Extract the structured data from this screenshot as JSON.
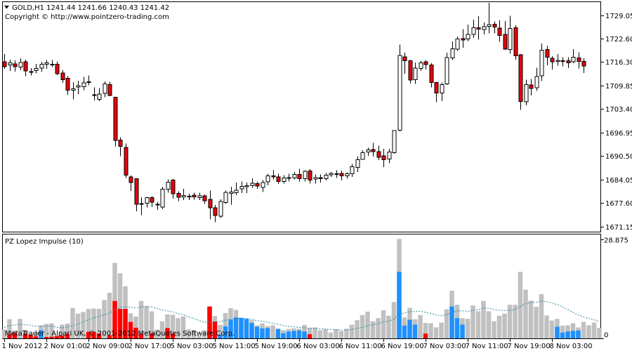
{
  "header": {
    "menu_icon": "triangle-down-icon",
    "symbol_info": "GOLD,H1  1241.44 1241.66 1240.43 1241.42",
    "copyright": "Copyright © http://www.pointzero-trading.com"
  },
  "indicator": {
    "title": "PZ Lopez Impulse (10)",
    "watermark": "MetaTrader - Alpari UK, © 2001-2012 MetaQuotes Software Corp."
  },
  "colors": {
    "bull_body": "#ffffff",
    "bear_body": "#e8000b",
    "hist_gray": "#c0c0c0",
    "hist_blue": "#1e90ff",
    "hist_red": "#ff0000",
    "signal_line": "#2a8a9a"
  },
  "chart_data": [
    {
      "type": "candlestick",
      "title": "GOLD,H1",
      "ylim": [
        1670.0,
        1732.5
      ],
      "y_ticks": [
        "1729.05",
        "1722.60",
        "1716.30",
        "1709.85",
        "1703.40",
        "1696.95",
        "1690.50",
        "1684.05",
        "1677.60",
        "1671.15"
      ],
      "x_ticks": [
        "1 Nov 2012",
        "2 Nov 01:00",
        "2 Nov 09:00",
        "2 Nov 17:00",
        "5 Nov 03:00",
        "5 Nov 11:00",
        "5 Nov 19:00",
        "6 Nov 03:00",
        "6 Nov 11:00",
        "6 Nov 19:00",
        "7 Nov 03:00",
        "7 Nov 11:00",
        "7 Nov 19:00",
        "8 Nov 03:00"
      ],
      "candles": [
        [
          1716.3,
          1715.0,
          1718.5,
          1714.4
        ],
        [
          1715.5,
          1716.1,
          1716.9,
          1713.8
        ],
        [
          1715.8,
          1715.0,
          1716.7,
          1713.7
        ],
        [
          1714.9,
          1716.2,
          1717.3,
          1714.0
        ],
        [
          1716.3,
          1713.8,
          1716.9,
          1712.4
        ],
        [
          1713.5,
          1713.7,
          1714.6,
          1712.6
        ],
        [
          1713.9,
          1714.5,
          1715.8,
          1713.2
        ],
        [
          1714.6,
          1715.7,
          1716.3,
          1713.6
        ],
        [
          1715.7,
          1716.1,
          1716.8,
          1714.4
        ],
        [
          1715.6,
          1715.7,
          1716.8,
          1714.9
        ],
        [
          1715.7,
          1713.1,
          1716.4,
          1712.7
        ],
        [
          1713.3,
          1711.4,
          1714.0,
          1710.6
        ],
        [
          1711.8,
          1708.6,
          1712.4,
          1707.3
        ],
        [
          1708.6,
          1708.9,
          1710.8,
          1706.1
        ],
        [
          1709.4,
          1709.8,
          1711.2,
          1707.5
        ],
        [
          1709.5,
          1710.6,
          1712.2,
          1708.6
        ],
        [
          1710.8,
          1710.9,
          1712.6,
          1709.9
        ],
        [
          1707.3,
          1707.3,
          1709.3,
          1705.8
        ],
        [
          1706.1,
          1707.5,
          1709.1,
          1705.6
        ],
        [
          1707.7,
          1710.3,
          1711.0,
          1706.6
        ],
        [
          1710.1,
          1707.1,
          1710.9,
          1706.9
        ],
        [
          1706.6,
          1694.8,
          1706.6,
          1693.1
        ],
        [
          1694.9,
          1693.2,
          1695.7,
          1690.5
        ],
        [
          1692.9,
          1685.3,
          1693.9,
          1684.5
        ],
        [
          1684.8,
          1683.3,
          1685.2,
          1681.0
        ],
        [
          1684.3,
          1677.3,
          1684.3,
          1675.4
        ],
        [
          1677.5,
          1677.4,
          1679.2,
          1674.3
        ],
        [
          1677.6,
          1679.1,
          1679.3,
          1676.4
        ],
        [
          1679.1,
          1677.9,
          1679.5,
          1676.5
        ],
        [
          1677.3,
          1677.1,
          1678.0,
          1675.8
        ],
        [
          1676.5,
          1681.4,
          1682.1,
          1676.0
        ],
        [
          1681.4,
          1683.4,
          1684.1,
          1680.5
        ],
        [
          1683.9,
          1680.2,
          1684.2,
          1678.8
        ],
        [
          1680.3,
          1679.2,
          1680.9,
          1678.2
        ],
        [
          1679.3,
          1679.7,
          1681.5,
          1678.5
        ],
        [
          1679.3,
          1679.5,
          1680.2,
          1678.5
        ],
        [
          1679.8,
          1679.3,
          1680.5,
          1678.6
        ],
        [
          1679.1,
          1679.6,
          1680.5,
          1678.5
        ],
        [
          1679.6,
          1678.3,
          1680.0,
          1677.4
        ],
        [
          1678.7,
          1676.3,
          1681.1,
          1673.2
        ],
        [
          1676.3,
          1674.2,
          1677.1,
          1672.4
        ],
        [
          1674.0,
          1678.1,
          1678.7,
          1673.6
        ],
        [
          1677.8,
          1680.6,
          1681.1,
          1677.4
        ],
        [
          1680.3,
          1680.7,
          1682.1,
          1677.2
        ],
        [
          1680.5,
          1681.2,
          1683.3,
          1679.8
        ],
        [
          1681.5,
          1682.2,
          1683.6,
          1680.4
        ],
        [
          1682.1,
          1682.4,
          1683.3,
          1680.4
        ],
        [
          1682.4,
          1683.1,
          1684.4,
          1681.8
        ],
        [
          1683.0,
          1682.3,
          1683.5,
          1681.5
        ],
        [
          1681.9,
          1683.3,
          1683.9,
          1680.7
        ],
        [
          1683.5,
          1685.1,
          1685.7,
          1682.5
        ],
        [
          1685.1,
          1684.8,
          1686.6,
          1684.0
        ],
        [
          1684.8,
          1683.6,
          1685.7,
          1682.9
        ],
        [
          1683.6,
          1684.5,
          1685.3,
          1683.0
        ],
        [
          1684.5,
          1684.6,
          1685.7,
          1683.6
        ],
        [
          1684.5,
          1685.5,
          1686.2,
          1684.1
        ],
        [
          1685.5,
          1684.3,
          1687.0,
          1683.6
        ],
        [
          1684.3,
          1686.3,
          1686.6,
          1683.6
        ],
        [
          1686.4,
          1683.9,
          1686.9,
          1683.0
        ],
        [
          1684.2,
          1684.6,
          1685.5,
          1683.0
        ],
        [
          1684.6,
          1684.3,
          1685.5,
          1683.3
        ],
        [
          1684.3,
          1685.3,
          1685.9,
          1683.8
        ],
        [
          1685.4,
          1685.8,
          1686.2,
          1684.8
        ],
        [
          1685.7,
          1685.7,
          1686.6,
          1684.5
        ],
        [
          1685.8,
          1685.1,
          1686.5,
          1683.8
        ],
        [
          1685.1,
          1685.7,
          1686.1,
          1684.3
        ],
        [
          1685.7,
          1687.6,
          1688.4,
          1684.8
        ],
        [
          1687.4,
          1689.5,
          1690.5,
          1686.2
        ],
        [
          1689.6,
          1691.4,
          1692.1,
          1689.5
        ],
        [
          1691.6,
          1692.2,
          1692.8,
          1690.6
        ],
        [
          1692.3,
          1691.7,
          1694.1,
          1690.4
        ],
        [
          1691.7,
          1690.2,
          1693.4,
          1689.4
        ],
        [
          1690.6,
          1689.5,
          1692.5,
          1687.5
        ],
        [
          1689.7,
          1691.6,
          1692.5,
          1688.6
        ],
        [
          1691.4,
          1697.5,
          1697.5,
          1691.2
        ],
        [
          1697.6,
          1718.1,
          1721.1,
          1697.3
        ],
        [
          1717.7,
          1716.6,
          1718.8,
          1713.1
        ],
        [
          1716.6,
          1711.3,
          1716.8,
          1710.4
        ],
        [
          1711.4,
          1714.6,
          1716.2,
          1710.3
        ],
        [
          1714.5,
          1716.1,
          1716.6,
          1713.8
        ],
        [
          1716.3,
          1715.6,
          1716.8,
          1714.2
        ],
        [
          1715.5,
          1710.7,
          1716.0,
          1709.3
        ],
        [
          1710.7,
          1707.8,
          1710.9,
          1705.3
        ],
        [
          1707.8,
          1710.1,
          1710.7,
          1705.6
        ],
        [
          1710.3,
          1717.5,
          1718.8,
          1710.0
        ],
        [
          1717.4,
          1719.9,
          1721.9,
          1716.8
        ],
        [
          1719.8,
          1722.6,
          1723.3,
          1719.3
        ],
        [
          1722.7,
          1722.3,
          1725.3,
          1720.2
        ],
        [
          1722.6,
          1723.8,
          1726.5,
          1721.9
        ],
        [
          1723.8,
          1725.7,
          1727.9,
          1722.9
        ],
        [
          1725.7,
          1725.3,
          1728.8,
          1722.4
        ],
        [
          1725.2,
          1726.0,
          1727.1,
          1723.8
        ],
        [
          1726.1,
          1726.5,
          1732.5,
          1724.1
        ],
        [
          1726.6,
          1725.9,
          1727.4,
          1724.1
        ],
        [
          1725.6,
          1723.6,
          1727.7,
          1721.8
        ],
        [
          1723.8,
          1719.8,
          1727.5,
          1719.6
        ],
        [
          1719.7,
          1725.5,
          1728.9,
          1718.6
        ],
        [
          1725.7,
          1718.0,
          1726.3,
          1716.9
        ],
        [
          1718.3,
          1705.5,
          1718.5,
          1703.2
        ],
        [
          1705.4,
          1710.1,
          1711.4,
          1704.4
        ],
        [
          1710.0,
          1709.0,
          1711.6,
          1707.1
        ],
        [
          1709.2,
          1712.3,
          1714.7,
          1708.4
        ],
        [
          1712.5,
          1719.5,
          1721.3,
          1711.1
        ],
        [
          1719.7,
          1717.6,
          1720.8,
          1715.4
        ],
        [
          1717.3,
          1716.3,
          1717.9,
          1714.2
        ],
        [
          1716.4,
          1716.7,
          1718.5,
          1715.3
        ],
        [
          1716.6,
          1716.5,
          1717.6,
          1715.1
        ],
        [
          1716.6,
          1716.1,
          1717.6,
          1714.6
        ],
        [
          1716.3,
          1717.6,
          1719.8,
          1716.0
        ],
        [
          1717.4,
          1716.4,
          1718.9,
          1714.5
        ],
        [
          1716.4,
          1715.2,
          1717.3,
          1713.3
        ]
      ]
    },
    {
      "type": "bar",
      "title": "PZ Lopez Impulse (10)",
      "ylim": [
        0,
        28.875
      ],
      "y_ticks": [
        "28.875",
        "0"
      ],
      "gray_values": [
        2.6,
        5.6,
        2.3,
        5.7,
        2.5,
        1.3,
        1.7,
        3.8,
        4.2,
        4.4,
        0.7,
        4.0,
        4.3,
        8.9,
        7.2,
        7.7,
        8.6,
        8.7,
        8.6,
        11.2,
        13.3,
        22.0,
        19.0,
        15.2,
        7.3,
        6.4,
        10.9,
        9.4,
        7.9,
        2.6,
        5.0,
        7.0,
        6.9,
        5.9,
        6.4,
        2.6,
        2.4,
        0.8,
        2.4,
        9.3,
        6.5,
        3.9,
        7.4,
        8.8,
        8.3,
        5.6,
        5.6,
        5.3,
        3.8,
        4.4,
        3.6,
        3.8,
        2.9,
        2.4,
        2.7,
        2.9,
        2.8,
        3.9,
        3.1,
        3.2,
        2.4,
        2.7,
        1.7,
        2.7,
        2.1,
        2.8,
        4.0,
        5.3,
        6.8,
        7.8,
        5.0,
        5.9,
        8.2,
        6.6,
        10.6,
        29.0,
        6.1,
        8.9,
        5.6,
        6.8,
        4.5,
        4.4,
        3.2,
        4.6,
        8.5,
        13.9,
        9.8,
        5.9,
        5.7,
        9.6,
        7.9,
        10.9,
        7.9,
        5.0,
        6.6,
        7.2,
        9.8,
        9.8,
        19.4,
        14.2,
        11.0,
        9.2,
        12.9,
        6.7,
        5.2,
        5.7,
        3.7,
        3.8,
        4.4,
        3.2,
        4.8,
        3.8,
        4.6,
        3.1
      ],
      "blue_values": [
        0,
        0,
        0,
        0,
        0,
        0,
        0,
        2.4,
        0,
        0,
        0,
        0,
        0,
        0,
        0,
        0,
        0,
        0,
        0,
        0,
        0,
        0,
        0,
        0,
        0,
        0,
        0,
        0,
        0,
        0,
        0,
        0,
        0,
        0,
        0,
        0,
        0,
        0,
        0,
        0,
        0,
        1.1,
        3.5,
        5.4,
        6.1,
        6.0,
        5.7,
        4.5,
        3.4,
        2.9,
        3.0,
        0,
        2.7,
        1.5,
        2.0,
        2.2,
        2.3,
        2.0,
        0,
        0,
        0,
        0,
        0,
        0,
        0,
        0,
        0,
        0,
        0,
        0,
        0,
        0,
        0,
        0,
        0,
        19.4,
        3.7,
        5.4,
        4.0,
        0,
        0,
        0,
        0,
        0,
        0,
        9.3,
        5.9,
        4.0,
        0,
        0,
        0,
        0,
        0,
        0,
        0,
        0,
        0,
        0,
        0,
        0,
        0,
        0,
        0,
        0,
        0,
        3.4,
        1.7,
        2.0,
        2.2,
        2.3,
        0,
        0,
        0,
        0
      ],
      "red_values": [
        0,
        1.2,
        1.6,
        0,
        1.4,
        1.0,
        0.6,
        0,
        0.4,
        0.5,
        0.7,
        0.8,
        1.3,
        0,
        0,
        0,
        1.9,
        1.9,
        1.4,
        0,
        0.9,
        10.9,
        8.6,
        8.6,
        4.8,
        3.1,
        1.3,
        0,
        1.5,
        0,
        0,
        3.0,
        1.4,
        0,
        0,
        0,
        0,
        0,
        0,
        9.3,
        4.9,
        0,
        0,
        0,
        0,
        0,
        0,
        0,
        0,
        0,
        0,
        0,
        0,
        0,
        0,
        0,
        0,
        0,
        1.2,
        0,
        0,
        0,
        0,
        0,
        0,
        0,
        0,
        0,
        0,
        0,
        0,
        0,
        0,
        0,
        0,
        0,
        0,
        0,
        0,
        0,
        1.4,
        0,
        0,
        0,
        0,
        0,
        0,
        0,
        0,
        0,
        0,
        0,
        0,
        0,
        0,
        0,
        0,
        0,
        0,
        0,
        0,
        0,
        0,
        0,
        0,
        0,
        0,
        0,
        0,
        0,
        0,
        0,
        0,
        0,
        0,
        0
      ],
      "signal_line": [
        3.2,
        3.7,
        3.9,
        4.1,
        4.0,
        3.8,
        3.5,
        3.5,
        3.6,
        3.6,
        3.2,
        3.1,
        3.3,
        3.7,
        4.2,
        4.8,
        5.4,
        6.0,
        6.4,
        6.8,
        7.4,
        8.4,
        9.1,
        9.3,
        9.1,
        8.9,
        9.1,
        9.3,
        9.2,
        8.7,
        8.3,
        8.0,
        7.7,
        7.2,
        6.9,
        6.3,
        5.8,
        5.2,
        4.7,
        4.8,
        4.9,
        4.9,
        5.3,
        5.6,
        5.8,
        5.8,
        5.8,
        5.6,
        5.2,
        5.0,
        4.7,
        4.4,
        4.1,
        3.7,
        3.5,
        3.4,
        3.2,
        3.1,
        3.0,
        2.9,
        2.8,
        2.7,
        2.6,
        2.5,
        2.4,
        2.4,
        2.6,
        2.9,
        3.2,
        3.7,
        4.0,
        4.3,
        4.8,
        5.0,
        5.6,
        7.2,
        7.4,
        7.8,
        7.8,
        7.9,
        7.6,
        7.3,
        6.8,
        6.6,
        6.9,
        7.6,
        8.0,
        8.0,
        7.9,
        8.1,
        8.4,
        8.8,
        8.8,
        8.4,
        8.2,
        8.1,
        8.2,
        8.4,
        9.4,
        10.1,
        10.5,
        10.5,
        10.9,
        10.7,
        10.3,
        9.9,
        9.2,
        8.4,
        7.6,
        6.8,
        6.3,
        5.8,
        5.4,
        4.9
      ]
    }
  ]
}
